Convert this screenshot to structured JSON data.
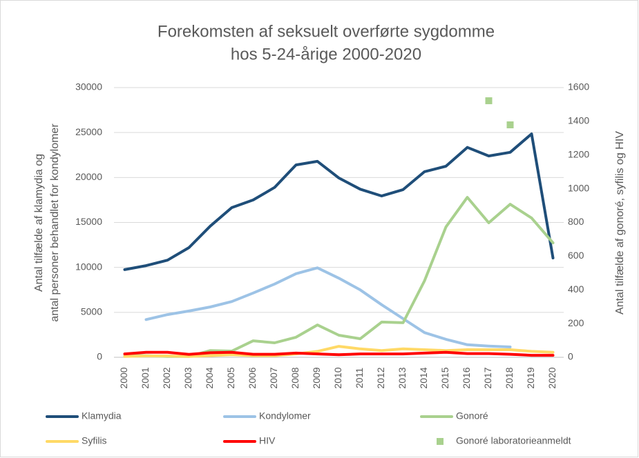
{
  "chart_data": {
    "type": "line",
    "title": [
      "Forekomsten af seksuelt overførte sygdomme",
      "hos 5-24-årige 2000-2020"
    ],
    "ylabel": [
      "Antal tilfælde af klamydia og",
      "antal personer behandlet for kondylomer"
    ],
    "y2label": "Antal tilfælde af gonoré, syfilis og HIV",
    "categories": [
      "2000",
      "2001",
      "2002",
      "2003",
      "2004",
      "2005",
      "2006",
      "2007",
      "2008",
      "2009",
      "2010",
      "2011",
      "2012",
      "2013",
      "2014",
      "2015",
      "2016",
      "2017",
      "2018",
      "2019",
      "2020"
    ],
    "ylim": [
      0,
      30000
    ],
    "yticks": [
      0,
      5000,
      10000,
      15000,
      20000,
      25000,
      30000
    ],
    "y2lim": [
      0,
      1600
    ],
    "y2ticks": [
      0,
      200,
      400,
      600,
      800,
      1000,
      1200,
      1400,
      1600
    ],
    "grid": true,
    "legend": "bottom",
    "series": [
      {
        "name": "Klamydia",
        "color": "#1f4e79",
        "values": [
          9750,
          10200,
          10800,
          12200,
          14600,
          16650,
          17500,
          18900,
          21400,
          21800,
          19950,
          18700,
          17950,
          18650,
          20650,
          21250,
          23350,
          22400,
          22800,
          24850,
          11050
        ]
      },
      {
        "name": "Kondylomer",
        "color": "#9dc3e6",
        "values": [
          null,
          4200,
          4750,
          5150,
          5600,
          6200,
          7150,
          8150,
          9300,
          9950,
          8800,
          7500,
          5850,
          4300,
          2750,
          2000,
          1400,
          1250,
          1150,
          null,
          null
        ]
      },
      {
        "name": "Gonoré",
        "color": "#a9d18e",
        "axis": "y2",
        "values": [
          10,
          10,
          5,
          5,
          40,
          37,
          98,
          86,
          119,
          192,
          131,
          110,
          209,
          205,
          454,
          773,
          949,
          798,
          908,
          826,
          679
        ]
      },
      {
        "name": "Syfilis",
        "color": "#ffd966",
        "axis": "y2",
        "values": [
          5,
          8,
          8,
          5,
          10,
          15,
          10,
          10,
          20,
          35,
          65,
          50,
          40,
          50,
          45,
          40,
          45,
          45,
          45,
          35,
          30
        ]
      },
      {
        "name": "HIV",
        "color": "#ff0000",
        "axis": "y2",
        "values": [
          20,
          30,
          30,
          17,
          27,
          30,
          18,
          18,
          25,
          20,
          15,
          20,
          20,
          20,
          25,
          30,
          22,
          22,
          18,
          12,
          12
        ]
      },
      {
        "name": "Gonoré laboratorieanmeldt",
        "color": "#a9d18e",
        "axis": "y2",
        "marker": "square",
        "values": [
          null,
          null,
          null,
          null,
          null,
          null,
          null,
          null,
          null,
          null,
          null,
          null,
          null,
          null,
          null,
          null,
          null,
          1522,
          1379,
          null,
          null
        ]
      }
    ]
  }
}
